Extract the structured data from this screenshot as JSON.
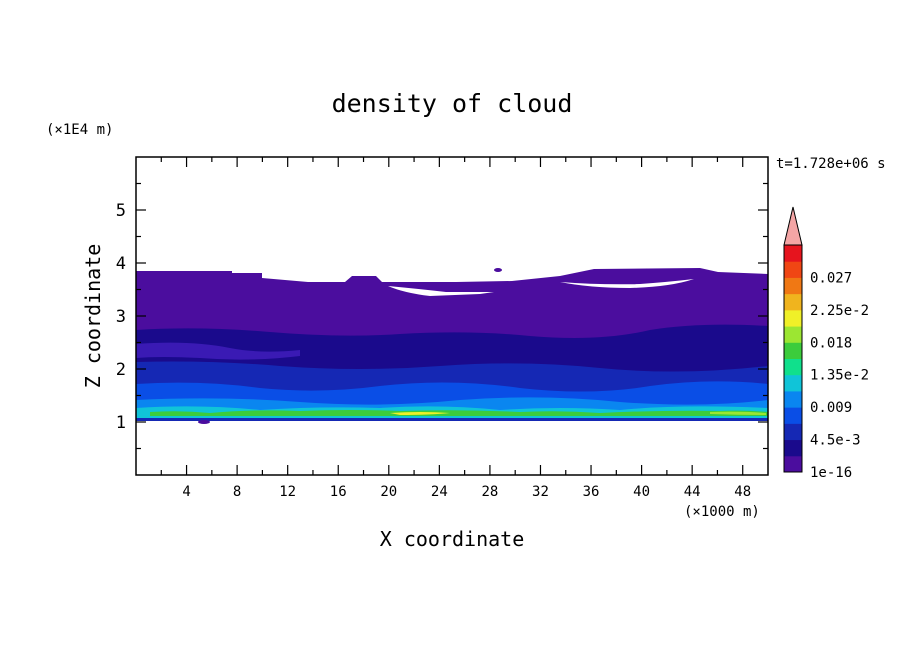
{
  "chart_data": {
    "type": "heatmap",
    "title": "density of cloud",
    "xlabel": "X coordinate",
    "ylabel": "Z coordinate",
    "x_unit": "(×1000 m)",
    "y_unit": "(×1E4 m)",
    "time_label": "t=1.728e+06 s",
    "xlim": [
      0,
      50
    ],
    "ylim": [
      0,
      6
    ],
    "x_ticks": [
      "4",
      "8",
      "12",
      "16",
      "20",
      "24",
      "28",
      "32",
      "36",
      "40",
      "44",
      "48"
    ],
    "y_ticks": [
      "1",
      "2",
      "3",
      "4",
      "5"
    ],
    "colorbar": {
      "labels": [
        "1e-16",
        "4.5e-3",
        "0.009",
        "1.35e-2",
        "0.018",
        "2.25e-2",
        "0.027"
      ],
      "colors": [
        "#4b0d9e",
        "#1a0a8c",
        "#1528b4",
        "#0a4ee6",
        "#0a86f0",
        "#10c4d8",
        "#10e08c",
        "#3ccc3c",
        "#9ce632",
        "#f0f028",
        "#f0b41e",
        "#f07814",
        "#f04614",
        "#e6141e"
      ],
      "extend_color": "#f4a5a5"
    },
    "field": {
      "cloud_base_z": 1.0,
      "cloud_top_z": 3.8,
      "max_value_approx": 0.023,
      "max_location": "x 20-26, z ~1.1"
    }
  }
}
